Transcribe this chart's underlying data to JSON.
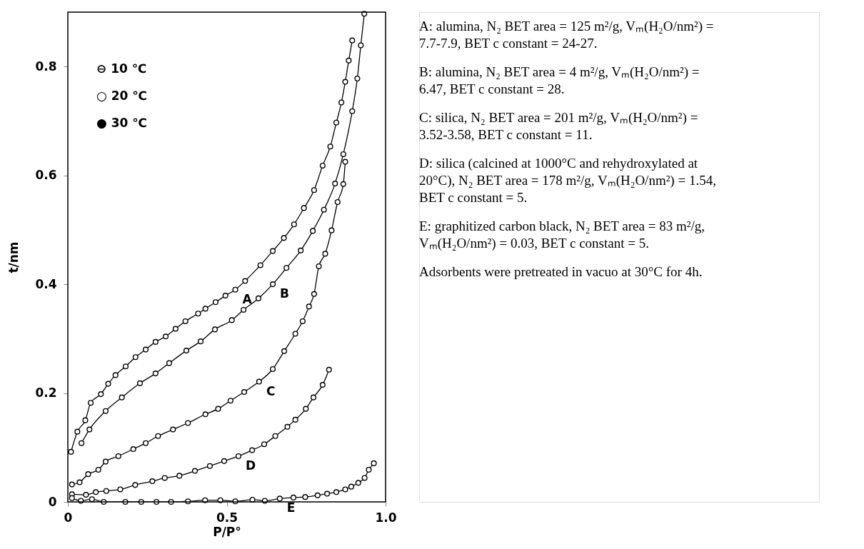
{
  "chart_data": {
    "type": "line",
    "xlabel": "P/P°",
    "ylabel": "t/nm",
    "xlim": [
      0,
      1.0
    ],
    "ylim": [
      0,
      0.9
    ],
    "xticks": [
      0,
      0.5,
      {
        "value": 1.0,
        "label": "1.0"
      }
    ],
    "yticks": [
      0,
      0.2,
      0.4,
      0.6,
      0.8
    ],
    "grid": false,
    "marker": "circle",
    "line_style": "solid",
    "series": [
      {
        "name": "A",
        "color": "#000000",
        "x": [
          0.01,
          0.03,
          0.055,
          0.072,
          0.104,
          0.127,
          0.15,
          0.182,
          0.213,
          0.245,
          0.276,
          0.308,
          0.339,
          0.37,
          0.41,
          0.433,
          0.465,
          0.496,
          0.527,
          0.558,
          0.606,
          0.645,
          0.68,
          0.712,
          0.743,
          0.775,
          0.802,
          0.826,
          0.845,
          0.861,
          0.873,
          0.884,
          0.895
        ],
        "values": [
          0.092,
          0.129,
          0.15,
          0.182,
          0.198,
          0.217,
          0.233,
          0.249,
          0.266,
          0.28,
          0.294,
          0.304,
          0.318,
          0.332,
          0.346,
          0.355,
          0.367,
          0.379,
          0.39,
          0.406,
          0.435,
          0.461,
          0.485,
          0.51,
          0.54,
          0.573,
          0.618,
          0.653,
          0.697,
          0.734,
          0.772,
          0.811,
          0.848
        ]
      },
      {
        "name": "B",
        "color": "#000000",
        "x": [
          0.043,
          0.068,
          0.119,
          0.17,
          0.227,
          0.276,
          0.319,
          0.373,
          0.418,
          0.463,
          0.516,
          0.553,
          0.6,
          0.645,
          0.688,
          0.733,
          0.771,
          0.806,
          0.841,
          0.867,
          0.895,
          0.911,
          0.922,
          0.933
        ],
        "values": [
          0.108,
          0.133,
          0.167,
          0.192,
          0.218,
          0.236,
          0.255,
          0.278,
          0.295,
          0.317,
          0.334,
          0.353,
          0.374,
          0.4,
          0.43,
          0.462,
          0.498,
          0.537,
          0.585,
          0.639,
          0.718,
          0.778,
          0.839,
          0.897
        ]
      },
      {
        "name": "C",
        "color": "#000000",
        "x": [
          0.013,
          0.037,
          0.064,
          0.096,
          0.119,
          0.159,
          0.206,
          0.245,
          0.284,
          0.331,
          0.378,
          0.433,
          0.473,
          0.512,
          0.555,
          0.602,
          0.645,
          0.681,
          0.716,
          0.739,
          0.759,
          0.775,
          0.79,
          0.81,
          0.83,
          0.849,
          0.867,
          0.873
        ],
        "values": [
          0.032,
          0.036,
          0.051,
          0.059,
          0.074,
          0.084,
          0.097,
          0.108,
          0.121,
          0.133,
          0.145,
          0.161,
          0.171,
          0.186,
          0.202,
          0.221,
          0.244,
          0.277,
          0.309,
          0.332,
          0.359,
          0.382,
          0.433,
          0.456,
          0.499,
          0.551,
          0.584,
          0.625
        ]
      },
      {
        "name": "D",
        "color": "#000000",
        "x": [
          0.013,
          0.057,
          0.088,
          0.121,
          0.165,
          0.212,
          0.266,
          0.305,
          0.351,
          0.4,
          0.447,
          0.492,
          0.537,
          0.58,
          0.618,
          0.653,
          0.691,
          0.716,
          0.749,
          0.773,
          0.802,
          0.822
        ],
        "values": [
          0.014,
          0.013,
          0.018,
          0.02,
          0.023,
          0.031,
          0.038,
          0.044,
          0.048,
          0.057,
          0.066,
          0.075,
          0.084,
          0.095,
          0.106,
          0.121,
          0.138,
          0.151,
          0.171,
          0.192,
          0.215,
          0.243
        ]
      },
      {
        "name": "E",
        "color": "#000000",
        "x": [
          0.013,
          0.041,
          0.076,
          0.113,
          0.181,
          0.231,
          0.279,
          0.325,
          0.378,
          0.432,
          0.48,
          0.527,
          0.581,
          0.62,
          0.667,
          0.71,
          0.747,
          0.786,
          0.816,
          0.845,
          0.873,
          0.892,
          0.914,
          0.934,
          0.947,
          0.963
        ],
        "values": [
          0.007,
          0.002,
          0.005,
          0,
          0,
          0,
          0,
          0,
          0.001,
          0.003,
          0.003,
          0.001,
          0.004,
          0.002,
          0.006,
          0.008,
          0.009,
          0.012,
          0.015,
          0.018,
          0.023,
          0.028,
          0.035,
          0.044,
          0.059,
          0.071
        ]
      }
    ],
    "annotations": [
      "⊖  10 ℃",
      "○  20 ℃",
      "●  30 ℃",
      "A: alumina, N₂ BET area = 125 m²/g, Vₘ(H₂O/nm²) = 7.7-7.9, BET c constant = 24-27.",
      "B: alumina, N₂ BET area = 4 m²/g, Vₘ(H₂O/nm²) = 6.47, BET c constant = 28.",
      "C: silica, N₂ BET area = 201 m²/g, Vₘ(H₂O/nm²) = 3.52-3.58, BET c constant = 11.",
      "D: silica (calcined at 1000°C and rehydroxylated at 20°C), N₂ BET area = 178 m²/g, Vₘ(H₂O/nm²) = 1.54, BET c constant = 5.",
      "E: graphitized carbon black, N₂ BET area = 83 m²/g, Vₘ(H₂O/nm²) = 0.03, BET c constant = 5.",
      "Adsorbents were pretreated in vacuo at 30°C for 4h."
    ]
  }
}
